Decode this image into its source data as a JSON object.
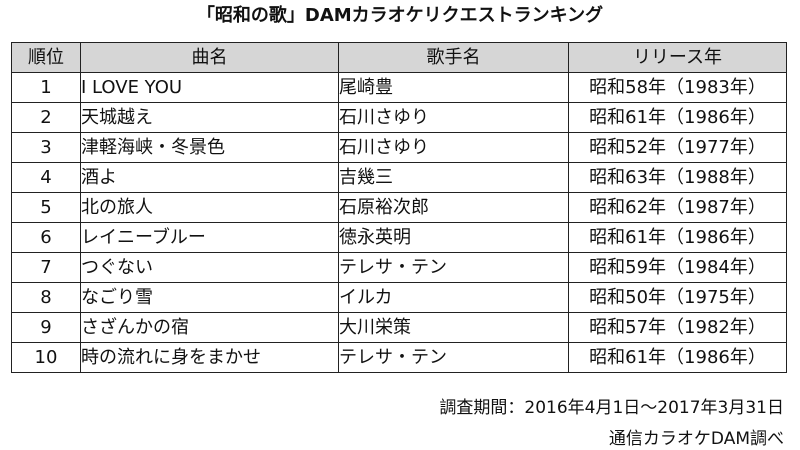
{
  "title": "「昭和の歌」DAMカラオケリクエストランキング",
  "table": {
    "headers": [
      "順位",
      "曲名",
      "歌手名",
      "リリース年"
    ],
    "rows": [
      {
        "rank": "1",
        "song": "I LOVE YOU",
        "artist": "尾崎豊",
        "release": "昭和58年（1983年）"
      },
      {
        "rank": "2",
        "song": "天城越え",
        "artist": "石川さゆり",
        "release": "昭和61年（1986年）"
      },
      {
        "rank": "3",
        "song": "津軽海峡・冬景色",
        "artist": "石川さゆり",
        "release": "昭和52年（1977年）"
      },
      {
        "rank": "4",
        "song": "酒よ",
        "artist": "吉幾三",
        "release": "昭和63年（1988年）"
      },
      {
        "rank": "5",
        "song": "北の旅人",
        "artist": "石原裕次郎",
        "release": "昭和62年（1987年）"
      },
      {
        "rank": "6",
        "song": "レイニーブルー",
        "artist": "徳永英明",
        "release": "昭和61年（1986年）"
      },
      {
        "rank": "7",
        "song": "つぐない",
        "artist": "テレサ・テン",
        "release": "昭和59年（1984年）"
      },
      {
        "rank": "8",
        "song": "なごり雪",
        "artist": "イルカ",
        "release": "昭和50年（1975年）"
      },
      {
        "rank": "9",
        "song": "さざんかの宿",
        "artist": "大川栄策",
        "release": "昭和57年（1982年）"
      },
      {
        "rank": "10",
        "song": "時の流れに身をまかせ",
        "artist": "テレサ・テン",
        "release": "昭和61年（1986年）"
      }
    ]
  },
  "footer": {
    "period": "調査期間：2016年4月1日～2017年3月31日",
    "source": "通信カラオケDAM調べ"
  },
  "colors": {
    "header_bg": "#d6d6d6",
    "border": "#222222",
    "text": "#111111"
  }
}
